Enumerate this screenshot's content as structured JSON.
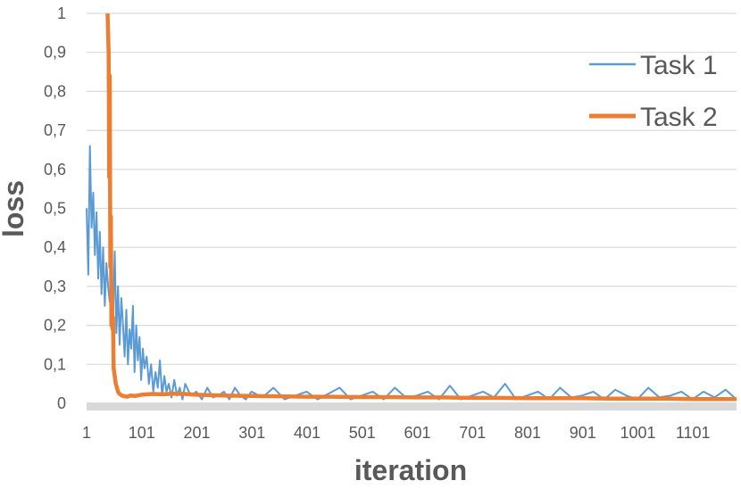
{
  "chart_data": {
    "type": "line",
    "xlabel": "iteration",
    "ylabel": "loss",
    "ylim": [
      0,
      1
    ],
    "xlim": [
      1,
      1180
    ],
    "y_ticks": [
      "0",
      "0,1",
      "0,2",
      "0,3",
      "0,4",
      "0,5",
      "0,6",
      "0,7",
      "0,8",
      "0,9",
      "1"
    ],
    "x_ticks": [
      "1",
      "101",
      "201",
      "301",
      "401",
      "501",
      "601",
      "701",
      "801",
      "901",
      "1001",
      "1101"
    ],
    "grid": "horizontal",
    "legend_position": "top-right",
    "series": [
      {
        "name": "Task 1",
        "color": "#5B9BD5",
        "x": [
          1,
          4,
          7,
          10,
          13,
          16,
          19,
          22,
          25,
          28,
          31,
          34,
          37,
          40,
          43,
          46,
          49,
          52,
          55,
          58,
          61,
          64,
          67,
          70,
          73,
          76,
          79,
          82,
          85,
          88,
          91,
          94,
          97,
          100,
          103,
          106,
          110,
          114,
          118,
          122,
          126,
          130,
          134,
          138,
          142,
          146,
          150,
          155,
          160,
          165,
          170,
          175,
          180,
          190,
          200,
          210,
          220,
          230,
          240,
          250,
          260,
          270,
          280,
          290,
          300,
          320,
          340,
          360,
          380,
          400,
          420,
          440,
          460,
          480,
          500,
          520,
          540,
          560,
          580,
          600,
          620,
          640,
          660,
          680,
          700,
          720,
          740,
          760,
          780,
          800,
          820,
          840,
          860,
          880,
          900,
          920,
          940,
          960,
          980,
          1000,
          1020,
          1040,
          1060,
          1080,
          1100,
          1120,
          1140,
          1160,
          1180
        ],
        "values": [
          0.5,
          0.33,
          0.66,
          0.45,
          0.54,
          0.38,
          0.49,
          0.32,
          0.44,
          0.28,
          0.4,
          0.25,
          0.36,
          0.3,
          0.26,
          0.34,
          0.22,
          0.39,
          0.18,
          0.3,
          0.15,
          0.27,
          0.2,
          0.12,
          0.24,
          0.1,
          0.19,
          0.14,
          0.25,
          0.08,
          0.2,
          0.11,
          0.17,
          0.06,
          0.14,
          0.09,
          0.12,
          0.05,
          0.1,
          0.03,
          0.08,
          0.04,
          0.11,
          0.02,
          0.07,
          0.03,
          0.05,
          0.015,
          0.06,
          0.02,
          0.04,
          0.01,
          0.05,
          0.02,
          0.03,
          0.01,
          0.04,
          0.015,
          0.02,
          0.03,
          0.01,
          0.04,
          0.02,
          0.01,
          0.03,
          0.015,
          0.04,
          0.01,
          0.02,
          0.03,
          0.01,
          0.025,
          0.04,
          0.01,
          0.02,
          0.03,
          0.01,
          0.04,
          0.015,
          0.02,
          0.03,
          0.01,
          0.045,
          0.01,
          0.02,
          0.03,
          0.015,
          0.05,
          0.01,
          0.02,
          0.03,
          0.01,
          0.04,
          0.015,
          0.02,
          0.03,
          0.01,
          0.035,
          0.02,
          0.01,
          0.04,
          0.015,
          0.02,
          0.03,
          0.01,
          0.03,
          0.015,
          0.035,
          0.01
        ]
      },
      {
        "name": "Task 2",
        "color": "#ED7D31",
        "x": [
          39,
          41,
          42,
          43,
          44,
          45,
          46,
          47,
          48,
          49,
          50,
          52,
          54,
          56,
          58,
          60,
          65,
          70,
          75,
          80,
          90,
          100,
          120,
          140,
          160,
          180,
          200,
          250,
          300,
          350,
          400,
          450,
          500,
          550,
          600,
          650,
          700,
          750,
          800,
          850,
          900,
          950,
          1000,
          1050,
          1100,
          1150,
          1180
        ],
        "values": [
          1.0,
          0.9,
          0.58,
          0.84,
          0.35,
          0.48,
          0.2,
          0.3,
          0.19,
          0.22,
          0.09,
          0.07,
          0.05,
          0.04,
          0.03,
          0.025,
          0.02,
          0.018,
          0.017,
          0.02,
          0.019,
          0.022,
          0.024,
          0.023,
          0.025,
          0.024,
          0.022,
          0.02,
          0.019,
          0.018,
          0.017,
          0.017,
          0.016,
          0.016,
          0.015,
          0.015,
          0.014,
          0.014,
          0.013,
          0.013,
          0.013,
          0.012,
          0.012,
          0.012,
          0.011,
          0.011,
          0.011
        ]
      }
    ]
  }
}
